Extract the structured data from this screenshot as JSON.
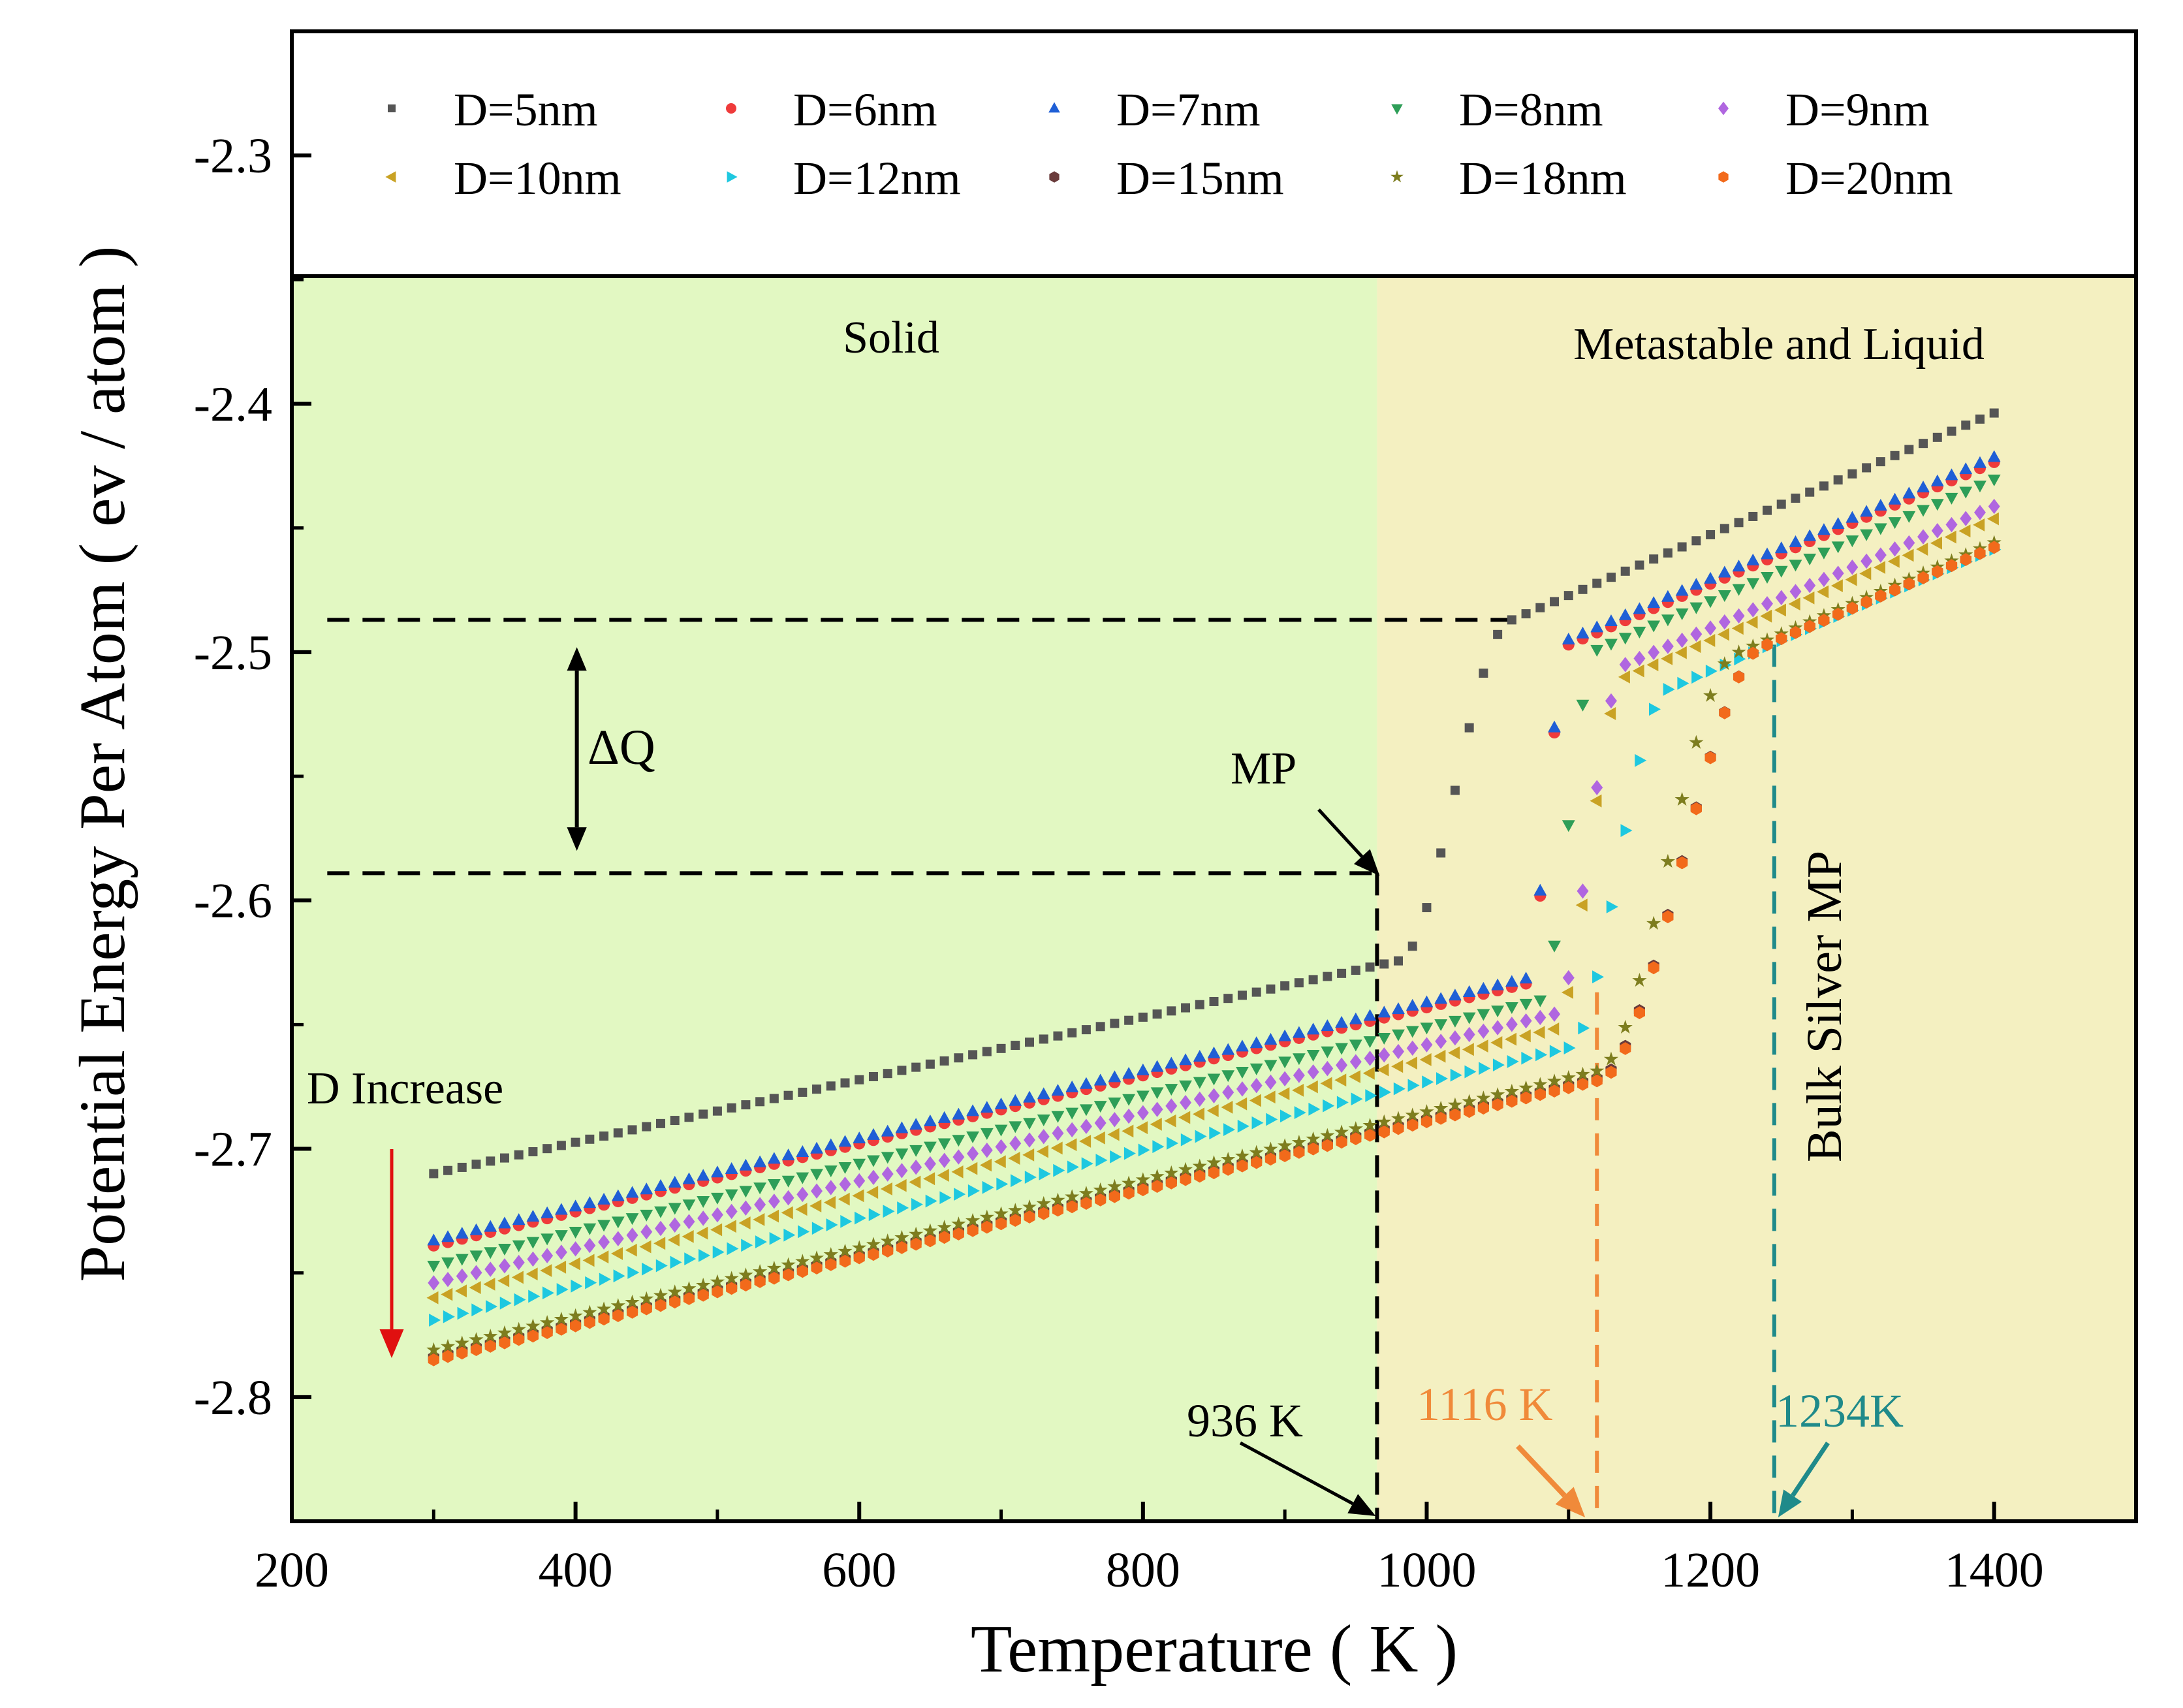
{
  "chart_data": {
    "type": "scatter",
    "xlabel": "Temperature ( K )",
    "ylabel": "Potential Energy Per Atom ( ev / atom )",
    "xlim": [
      200,
      1500
    ],
    "ylim": [
      -2.85,
      -2.25
    ],
    "x_ticks": [
      200,
      400,
      600,
      800,
      1000,
      1200,
      1400
    ],
    "x_tick_labels": [
      "200",
      "400",
      "600",
      "800",
      "1000",
      "1200",
      "1400"
    ],
    "y_ticks": [
      -2.3,
      -2.4,
      -2.5,
      -2.6,
      -2.7,
      -2.8
    ],
    "y_tick_labels": [
      "-2.3",
      "-2.4",
      "-2.5",
      "-2.6",
      "-2.7",
      "-2.8"
    ],
    "regions": [
      {
        "label": "Solid",
        "x_start": 200,
        "x_end": 965,
        "color": "#e2f8c2"
      },
      {
        "label": "Metastable and Liquid",
        "x_start": 965,
        "x_end": 1500,
        "color": "#f4f0c1"
      }
    ],
    "series": [
      {
        "name": "D=5nm",
        "marker": "square",
        "color": "#555555",
        "e300": -2.71,
        "slope_solid": 0.000126,
        "t_melt": 980,
        "jump_end": 1060,
        "e_liquid_start": -2.487,
        "slope_liquid": 0.000245
      },
      {
        "name": "D=6nm",
        "marker": "circle",
        "color": "#ef3b3b",
        "e300": -2.739,
        "slope_solid": 0.000137,
        "t_melt": 1070,
        "jump_end": 1100,
        "e_liquid_start": -2.497,
        "slope_liquid": 0.000245
      },
      {
        "name": "D=7nm",
        "marker": "triangle-up",
        "color": "#1f5fd6",
        "e300": -2.737,
        "slope_solid": 0.000137,
        "t_melt": 1070,
        "jump_end": 1100,
        "e_liquid_start": -2.495,
        "slope_liquid": 0.000245
      },
      {
        "name": "D=8nm",
        "marker": "triangle-down",
        "color": "#2e9e58",
        "e300": -2.747,
        "slope_solid": 0.000137,
        "t_melt": 1080,
        "jump_end": 1120,
        "e_liquid_start": -2.499,
        "slope_liquid": 0.000245
      },
      {
        "name": "D=9nm",
        "marker": "diamond",
        "color": "#b066e0",
        "e300": -2.754,
        "slope_solid": 0.000137,
        "t_melt": 1090,
        "jump_end": 1140,
        "e_liquid_start": -2.505,
        "slope_liquid": 0.000245
      },
      {
        "name": "D=10nm",
        "marker": "triangle-left",
        "color": "#c9a224",
        "e300": -2.76,
        "slope_solid": 0.000137,
        "t_melt": 1090,
        "jump_end": 1140,
        "e_liquid_start": -2.51,
        "slope_liquid": 0.000245
      },
      {
        "name": "D=12nm",
        "marker": "triangle-right",
        "color": "#1ec8e0",
        "e300": -2.769,
        "slope_solid": 0.000137,
        "t_melt": 1100,
        "jump_end": 1170,
        "e_liquid_start": -2.515,
        "slope_liquid": 0.000245
      },
      {
        "name": "D=15nm",
        "marker": "hexagon",
        "color": "#6a3b3b",
        "e300": -2.784,
        "slope_solid": 0.000137,
        "t_melt": 1120,
        "jump_end": 1240,
        "e_liquid_start": -2.497,
        "slope_liquid": 0.000245
      },
      {
        "name": "D=18nm",
        "marker": "star",
        "color": "#7d7d1e",
        "e300": -2.781,
        "slope_solid": 0.000137,
        "t_melt": 1120,
        "jump_end": 1220,
        "e_liquid_start": -2.5,
        "slope_liquid": 0.000245
      },
      {
        "name": "D=20nm",
        "marker": "hexagon",
        "color": "#f26a1b",
        "e300": -2.785,
        "slope_solid": 0.000137,
        "t_melt": 1120,
        "jump_end": 1240,
        "e_liquid_start": -2.497,
        "slope_liquid": 0.000245
      }
    ],
    "annotations": {
      "solid": "Solid",
      "liquid": "Metastable and Liquid",
      "delta_q": "ΔQ",
      "mp": "MP",
      "bulk_mp": "Bulk Silver MP",
      "d_increase": "D Increase",
      "t936": "936 K",
      "t1116": "1116 K",
      "t1234": "1234K"
    },
    "guide_values": {
      "dq_upper": -2.487,
      "dq_lower": -2.589,
      "mp_x": 965,
      "t1116_x": 1120,
      "t1234_x": 1245
    },
    "colors": {
      "black_guide": "#000000",
      "orange_guide": "#f08a3a",
      "teal_guide": "#1f8a8a",
      "red_arrow": "#e01010"
    }
  }
}
